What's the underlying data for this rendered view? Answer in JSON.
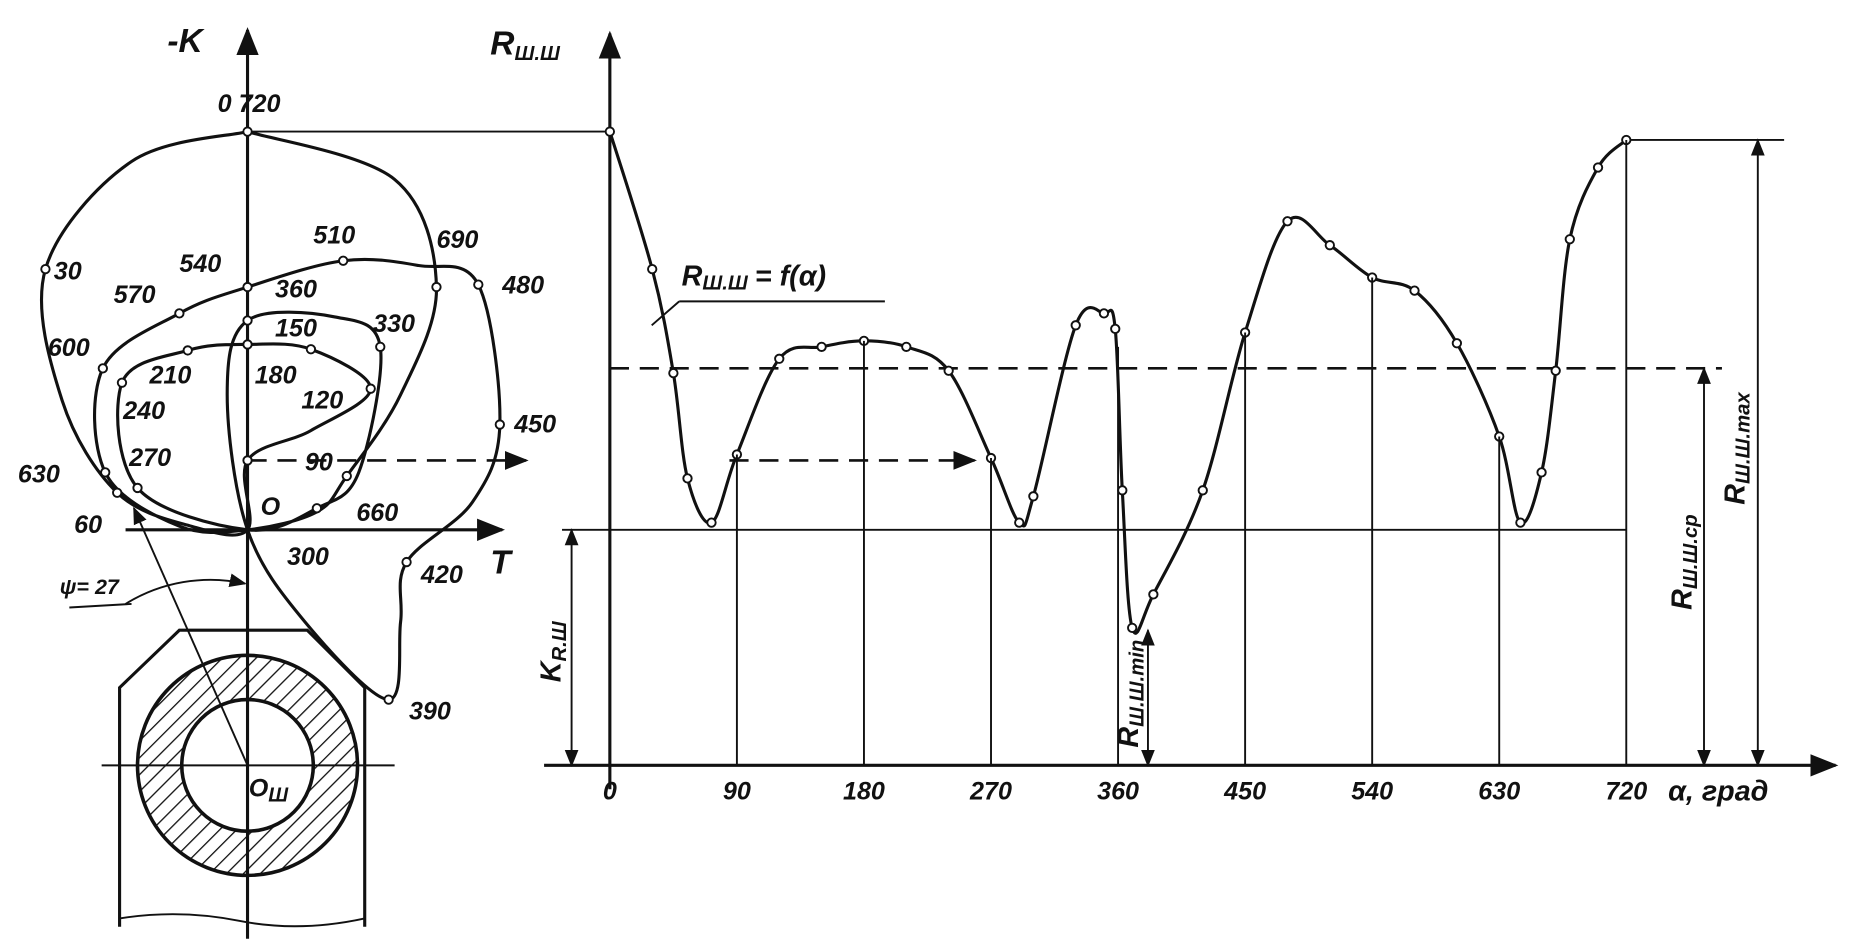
{
  "left_diagram": {
    "axis_label": "-K",
    "h_axis_label": "T",
    "origin_label": "O",
    "shaft_center_label": {
      "main": "O",
      "sub": "Ш"
    },
    "angle_label": "ψ= 27",
    "point_labels": [
      "0 720",
      "30",
      "60",
      "90",
      "120",
      "150",
      "180",
      "210",
      "240",
      "270",
      "300",
      "330",
      "360",
      "390",
      "420",
      "450",
      "480",
      "510",
      "540",
      "570",
      "600",
      "630",
      "660",
      "690"
    ]
  },
  "right_diagram": {
    "y_axis_label": {
      "main": "R",
      "sub": "Ш.Ш"
    },
    "curve_label": {
      "main": "R",
      "sub": "Ш.Ш",
      "rest": "= f(α)"
    },
    "x_ticks": [
      "0",
      "90",
      "180",
      "270",
      "360",
      "450",
      "540",
      "630",
      "720"
    ],
    "x_axis_label": "α, град",
    "dimensions": [
      {
        "main": "K",
        "sub": "R.Ш"
      },
      {
        "main": "R",
        "sub": "Ш.Ш.min"
      },
      {
        "main": "R",
        "sub": "Ш.Ш.ср"
      },
      {
        "main": "R",
        "sub": "Ш.Ш.max"
      }
    ]
  }
}
